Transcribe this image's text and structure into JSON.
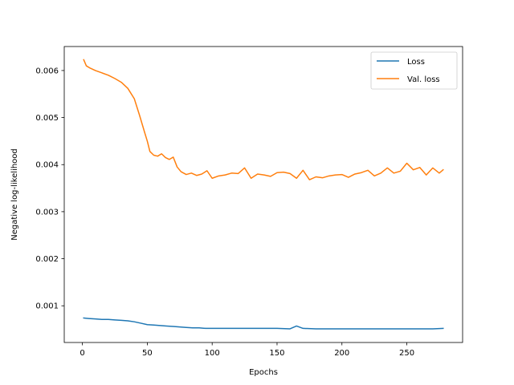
{
  "chart_data": {
    "type": "line",
    "xlabel": "Epochs",
    "ylabel": "Negative log-likelihood",
    "xlim": [
      -14,
      293
    ],
    "ylim": [
      0.00022,
      0.00651
    ],
    "xticks": [
      0,
      50,
      100,
      150,
      200,
      250
    ],
    "yticks": [
      0.001,
      0.002,
      0.003,
      0.004,
      0.005,
      0.006
    ],
    "ytick_labels": [
      "0.001",
      "0.002",
      "0.003",
      "0.004",
      "0.005",
      "0.006"
    ],
    "grid": false,
    "legend_position": "top-right",
    "series": [
      {
        "name": "Loss",
        "color": "#1f77b4",
        "x": [
          1,
          5,
          10,
          15,
          20,
          25,
          30,
          35,
          40,
          45,
          50,
          55,
          60,
          65,
          70,
          75,
          80,
          85,
          90,
          95,
          100,
          110,
          120,
          130,
          140,
          150,
          160,
          165,
          170,
          180,
          190,
          200,
          210,
          220,
          230,
          240,
          250,
          260,
          270,
          278
        ],
        "y": [
          0.00074,
          0.00073,
          0.00072,
          0.00071,
          0.00071,
          0.0007,
          0.00069,
          0.00068,
          0.00066,
          0.00063,
          0.0006,
          0.00059,
          0.00058,
          0.00057,
          0.00056,
          0.00055,
          0.00054,
          0.00053,
          0.00053,
          0.00052,
          0.00052,
          0.00052,
          0.00052,
          0.00052,
          0.00052,
          0.00052,
          0.00051,
          0.00057,
          0.00052,
          0.00051,
          0.00051,
          0.00051,
          0.00051,
          0.00051,
          0.00051,
          0.00051,
          0.00051,
          0.00051,
          0.00051,
          0.00052
        ]
      },
      {
        "name": "Val. loss",
        "color": "#ff7f0e",
        "x": [
          1,
          3,
          6,
          10,
          15,
          20,
          25,
          30,
          35,
          40,
          44,
          48,
          50,
          52,
          55,
          58,
          61,
          64,
          67,
          70,
          73,
          76,
          80,
          84,
          88,
          92,
          96,
          100,
          105,
          110,
          115,
          120,
          125,
          130,
          135,
          140,
          145,
          150,
          155,
          160,
          165,
          170,
          175,
          180,
          185,
          190,
          195,
          200,
          205,
          210,
          215,
          220,
          225,
          230,
          235,
          240,
          245,
          250,
          255,
          260,
          265,
          270,
          275,
          278
        ],
        "y": [
          0.00623,
          0.0061,
          0.00605,
          0.006,
          0.00595,
          0.0059,
          0.00583,
          0.00575,
          0.00562,
          0.0054,
          0.00505,
          0.00468,
          0.0045,
          0.00428,
          0.0042,
          0.00418,
          0.00423,
          0.00415,
          0.00411,
          0.00416,
          0.00395,
          0.00385,
          0.00379,
          0.00382,
          0.00377,
          0.0038,
          0.00387,
          0.00371,
          0.00376,
          0.00378,
          0.00382,
          0.00381,
          0.00393,
          0.00371,
          0.0038,
          0.00378,
          0.00375,
          0.00383,
          0.00384,
          0.00381,
          0.00371,
          0.00388,
          0.00368,
          0.00374,
          0.00372,
          0.00376,
          0.00378,
          0.00379,
          0.00373,
          0.0038,
          0.00383,
          0.00388,
          0.00376,
          0.00382,
          0.00393,
          0.00382,
          0.00386,
          0.00403,
          0.00389,
          0.00394,
          0.00378,
          0.00393,
          0.00382,
          0.00389
        ]
      }
    ]
  }
}
